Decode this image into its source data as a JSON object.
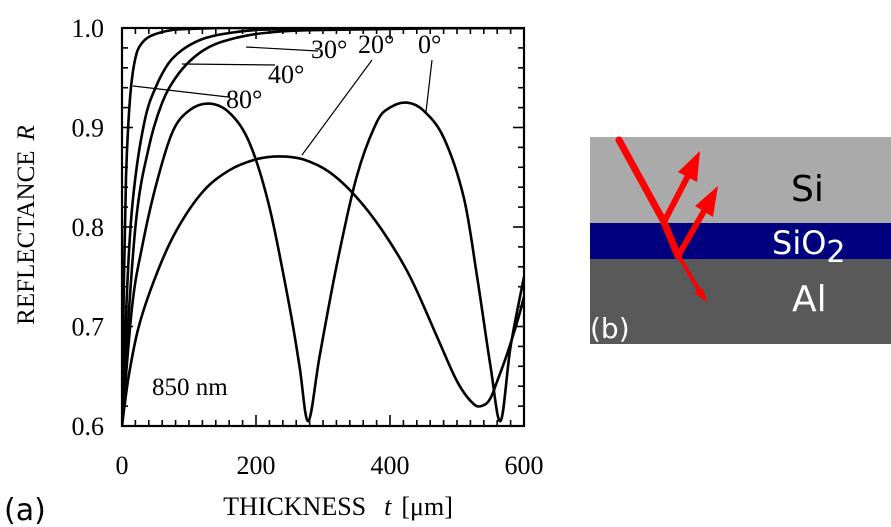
{
  "panel_a": {
    "label": "(a)",
    "annotation": "850 nm",
    "xlabel_text": "THICKNESS",
    "xlabel_var": "t",
    "xlabel_unit": "[μm]",
    "ylabel_text": "REFLECTANCE",
    "ylabel_var": "R",
    "curve_labels": [
      {
        "text": "0°"
      },
      {
        "text": "20°"
      },
      {
        "text": "30°"
      },
      {
        "text": "40°"
      },
      {
        "text": "80°"
      }
    ]
  },
  "panel_b": {
    "label": "(b)",
    "layers": [
      {
        "name": "Si",
        "color": "#aaaaaa"
      },
      {
        "name": "SiO",
        "sub": "2",
        "color": "#00007f"
      },
      {
        "name": "Al",
        "color": "#595959"
      }
    ],
    "arrow_color": "#ff0000"
  },
  "chart_data": {
    "type": "line",
    "title": "",
    "xlabel": "THICKNESS t [μm]",
    "ylabel": "REFLECTANCE R",
    "xlim": [
      0,
      600
    ],
    "ylim": [
      0.6,
      1.0
    ],
    "xticks": [
      "0",
      "200",
      "400",
      "600"
    ],
    "yticks": [
      "0.6",
      "0.7",
      "0.8",
      "0.9",
      "1.0"
    ],
    "annotation": "850 nm",
    "series": [
      {
        "name": "0°",
        "x": [
          0,
          15,
          30,
          50,
          75,
          100,
          130,
          160,
          190,
          220,
          250,
          265,
          278,
          295,
          320,
          350,
          380,
          400,
          425,
          450,
          480,
          510,
          530,
          550,
          565,
          580,
          600
        ],
        "y": [
          0.6,
          0.72,
          0.78,
          0.84,
          0.895,
          0.917,
          0.924,
          0.915,
          0.885,
          0.82,
          0.72,
          0.66,
          0.605,
          0.67,
          0.76,
          0.85,
          0.905,
          0.92,
          0.925,
          0.917,
          0.89,
          0.83,
          0.75,
          0.66,
          0.605,
          0.68,
          0.75
        ]
      },
      {
        "name": "20°",
        "x": [
          0,
          10,
          25,
          50,
          80,
          120,
          160,
          200,
          235,
          270,
          310,
          350,
          390,
          430,
          470,
          500,
          525,
          540,
          550,
          560,
          575,
          590,
          600
        ],
        "y": [
          0.6,
          0.65,
          0.7,
          0.75,
          0.795,
          0.835,
          0.857,
          0.868,
          0.871,
          0.868,
          0.855,
          0.83,
          0.795,
          0.75,
          0.69,
          0.645,
          0.622,
          0.621,
          0.628,
          0.645,
          0.673,
          0.705,
          0.73
        ]
      },
      {
        "name": "30°",
        "x": [
          0,
          20,
          40,
          60,
          80,
          100,
          120,
          140,
          170,
          200,
          250,
          300,
          400,
          500,
          600
        ],
        "y": [
          0.61,
          0.8,
          0.88,
          0.925,
          0.95,
          0.966,
          0.977,
          0.984,
          0.99,
          0.994,
          0.997,
          0.998,
          0.999,
          1.0,
          1.0
        ]
      },
      {
        "name": "40°",
        "x": [
          0,
          10,
          20,
          35,
          50,
          70,
          90,
          110,
          130,
          160,
          200,
          250,
          300,
          400,
          500,
          600
        ],
        "y": [
          0.61,
          0.77,
          0.85,
          0.91,
          0.94,
          0.965,
          0.978,
          0.986,
          0.991,
          0.995,
          0.998,
          0.999,
          1.0,
          1.0,
          1.0,
          1.0
        ]
      },
      {
        "name": "80°",
        "x": [
          0,
          3,
          6,
          10,
          15,
          22,
          30,
          40,
          55,
          75,
          100,
          150,
          200,
          300,
          400,
          500,
          600
        ],
        "y": [
          0.61,
          0.75,
          0.85,
          0.91,
          0.95,
          0.975,
          0.985,
          0.991,
          0.995,
          0.998,
          0.999,
          1.0,
          1.0,
          1.0,
          1.0,
          1.0,
          1.0
        ]
      }
    ]
  }
}
